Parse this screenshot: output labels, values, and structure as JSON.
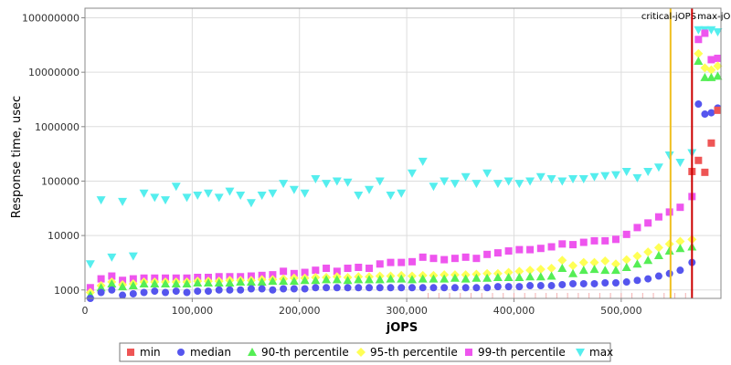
{
  "chart_data": {
    "type": "scatter",
    "title": "",
    "xlabel": "jOPS",
    "ylabel": "Response time, usec",
    "xlim": [
      0,
      593000
    ],
    "ylim": [
      700,
      150000000
    ],
    "y_scale": "log",
    "x_ticks": [
      0,
      100000,
      200000,
      300000,
      400000,
      500000
    ],
    "x_tick_labels": [
      "0",
      "100,000",
      "200,000",
      "300,000",
      "400,000",
      "500,000"
    ],
    "y_ticks": [
      1000,
      10000,
      100000,
      1000000,
      10000000,
      100000000
    ],
    "y_tick_labels": [
      "1000",
      "10000",
      "100000",
      "1000000",
      "10000000",
      "100000000"
    ],
    "grid": true,
    "legend_position": "bottom",
    "markers": [
      {
        "label": "critical-jOPS",
        "x": 546000,
        "color": "#f0c020"
      },
      {
        "label": "max-jOPS",
        "x": 566000,
        "color": "#cc0000"
      }
    ],
    "series": [
      {
        "name": "min",
        "color": "#ee5555",
        "shape": "square",
        "x": [
          566000,
          572000,
          578000,
          584000,
          590000
        ],
        "y": [
          150000,
          240000,
          145000,
          500000,
          2000000
        ]
      },
      {
        "name": "median",
        "color": "#5555ee",
        "shape": "circle",
        "x": [
          5000,
          15000,
          25000,
          35000,
          45000,
          55000,
          65000,
          75000,
          85000,
          95000,
          105000,
          115000,
          125000,
          135000,
          145000,
          155000,
          165000,
          175000,
          185000,
          195000,
          205000,
          215000,
          225000,
          235000,
          245000,
          255000,
          265000,
          275000,
          285000,
          295000,
          305000,
          315000,
          325000,
          335000,
          345000,
          355000,
          365000,
          375000,
          385000,
          395000,
          405000,
          415000,
          425000,
          435000,
          445000,
          455000,
          465000,
          475000,
          485000,
          495000,
          505000,
          515000,
          525000,
          535000,
          545000,
          555000,
          566000,
          572000,
          578000,
          584000,
          590000
        ],
        "y": [
          700,
          900,
          1000,
          800,
          850,
          900,
          950,
          900,
          950,
          900,
          950,
          950,
          1000,
          1000,
          1000,
          1050,
          1050,
          1000,
          1050,
          1050,
          1050,
          1100,
          1100,
          1100,
          1100,
          1100,
          1100,
          1100,
          1100,
          1100,
          1100,
          1100,
          1100,
          1100,
          1100,
          1100,
          1100,
          1100,
          1150,
          1150,
          1150,
          1200,
          1200,
          1200,
          1250,
          1300,
          1300,
          1300,
          1350,
          1350,
          1400,
          1500,
          1600,
          1800,
          2000,
          2300,
          3200,
          2600000,
          1700000,
          1800000,
          2200000
        ]
      },
      {
        "name": "90-th percentile",
        "color": "#55ee55",
        "shape": "triangle-up",
        "x": [
          5000,
          15000,
          25000,
          35000,
          45000,
          55000,
          65000,
          75000,
          85000,
          95000,
          105000,
          115000,
          125000,
          135000,
          145000,
          155000,
          165000,
          175000,
          185000,
          195000,
          205000,
          215000,
          225000,
          235000,
          245000,
          255000,
          265000,
          275000,
          285000,
          295000,
          305000,
          315000,
          325000,
          335000,
          345000,
          355000,
          365000,
          375000,
          385000,
          395000,
          405000,
          415000,
          425000,
          435000,
          445000,
          455000,
          465000,
          475000,
          485000,
          495000,
          505000,
          515000,
          525000,
          535000,
          545000,
          555000,
          566000,
          572000,
          578000,
          584000,
          590000
        ],
        "y": [
          800,
          1100,
          1300,
          1150,
          1200,
          1300,
          1300,
          1300,
          1300,
          1300,
          1350,
          1350,
          1350,
          1350,
          1400,
          1400,
          1400,
          1450,
          1450,
          1450,
          1500,
          1500,
          1550,
          1550,
          1500,
          1550,
          1550,
          1550,
          1600,
          1600,
          1550,
          1600,
          1600,
          1600,
          1650,
          1600,
          1650,
          1650,
          1700,
          1700,
          1700,
          1750,
          1750,
          1800,
          2500,
          2000,
          2300,
          2400,
          2300,
          2300,
          2600,
          3000,
          3500,
          4300,
          5200,
          5800,
          6200,
          16000000,
          8000000,
          8000000,
          8500000
        ]
      },
      {
        "name": "95-th percentile",
        "color": "#ffff55",
        "shape": "diamond",
        "x": [
          5000,
          15000,
          25000,
          35000,
          45000,
          55000,
          65000,
          75000,
          85000,
          95000,
          105000,
          115000,
          125000,
          135000,
          145000,
          155000,
          165000,
          175000,
          185000,
          195000,
          205000,
          215000,
          225000,
          235000,
          245000,
          255000,
          265000,
          275000,
          285000,
          295000,
          305000,
          315000,
          325000,
          335000,
          345000,
          355000,
          365000,
          375000,
          385000,
          395000,
          405000,
          415000,
          425000,
          435000,
          445000,
          455000,
          465000,
          475000,
          485000,
          495000,
          505000,
          515000,
          525000,
          535000,
          545000,
          555000,
          566000,
          572000,
          578000,
          584000,
          590000
        ],
        "y": [
          900,
          1200,
          1400,
          1250,
          1300,
          1400,
          1400,
          1400,
          1400,
          1400,
          1450,
          1450,
          1450,
          1500,
          1500,
          1500,
          1550,
          1550,
          1600,
          1650,
          1650,
          1700,
          1700,
          1750,
          1700,
          1750,
          1750,
          1800,
          1800,
          1850,
          1800,
          1850,
          1850,
          1900,
          1900,
          1900,
          1950,
          2000,
          2000,
          2100,
          2200,
          2300,
          2400,
          2500,
          3500,
          2800,
          3200,
          3200,
          3400,
          3000,
          3600,
          4200,
          5000,
          6000,
          7000,
          7800,
          8500,
          22000000,
          12000000,
          11000000,
          13000000
        ]
      },
      {
        "name": "99-th percentile",
        "color": "#ee55ee",
        "shape": "square",
        "x": [
          5000,
          15000,
          25000,
          35000,
          45000,
          55000,
          65000,
          75000,
          85000,
          95000,
          105000,
          115000,
          125000,
          135000,
          145000,
          155000,
          165000,
          175000,
          185000,
          195000,
          205000,
          215000,
          225000,
          235000,
          245000,
          255000,
          265000,
          275000,
          285000,
          295000,
          305000,
          315000,
          325000,
          335000,
          345000,
          355000,
          365000,
          375000,
          385000,
          395000,
          405000,
          415000,
          425000,
          435000,
          445000,
          455000,
          465000,
          475000,
          485000,
          495000,
          505000,
          515000,
          525000,
          535000,
          545000,
          555000,
          566000,
          572000,
          578000,
          584000,
          590000
        ],
        "y": [
          1100,
          1600,
          1800,
          1500,
          1600,
          1650,
          1650,
          1650,
          1650,
          1650,
          1700,
          1700,
          1750,
          1750,
          1750,
          1800,
          1850,
          1900,
          2200,
          2000,
          2100,
          2300,
          2500,
          2200,
          2500,
          2600,
          2500,
          3000,
          3200,
          3200,
          3300,
          4000,
          3800,
          3600,
          3800,
          4000,
          3800,
          4500,
          4800,
          5200,
          5500,
          5500,
          5800,
          6200,
          7000,
          6800,
          7500,
          8000,
          8000,
          8500,
          10500,
          14000,
          17000,
          22000,
          27000,
          33000,
          52000,
          40000000,
          52000000,
          17000000,
          18000000
        ]
      },
      {
        "name": "max",
        "color": "#55eeee",
        "shape": "triangle-down",
        "x": [
          5000,
          15000,
          25000,
          35000,
          45000,
          55000,
          65000,
          75000,
          85000,
          95000,
          105000,
          115000,
          125000,
          135000,
          145000,
          155000,
          165000,
          175000,
          185000,
          195000,
          205000,
          215000,
          225000,
          235000,
          245000,
          255000,
          265000,
          275000,
          285000,
          295000,
          305000,
          315000,
          325000,
          335000,
          345000,
          355000,
          365000,
          375000,
          385000,
          395000,
          405000,
          415000,
          425000,
          435000,
          445000,
          455000,
          465000,
          475000,
          485000,
          495000,
          505000,
          515000,
          525000,
          535000,
          545000,
          555000,
          566000,
          572000,
          578000,
          584000,
          590000
        ],
        "y": [
          3000,
          45000,
          4000,
          42000,
          4200,
          60000,
          50000,
          45000,
          80000,
          50000,
          55000,
          60000,
          50000,
          65000,
          55000,
          40000,
          55000,
          60000,
          90000,
          70000,
          60000,
          110000,
          90000,
          100000,
          95000,
          55000,
          70000,
          100000,
          55000,
          60000,
          140000,
          230000,
          80000,
          100000,
          90000,
          120000,
          90000,
          140000,
          90000,
          100000,
          90000,
          100000,
          120000,
          110000,
          100000,
          110000,
          110000,
          120000,
          125000,
          130000,
          150000,
          115000,
          150000,
          180000,
          300000,
          220000,
          330000,
          60000000,
          60000000,
          60000000,
          55000000
        ]
      }
    ],
    "legend": [
      "min",
      "median",
      "90-th percentile",
      "95-th percentile",
      "99-th percentile",
      "max"
    ]
  },
  "colors": {
    "background": "#ffffff",
    "plot_background": "#ffffff",
    "grid": "#dddddd",
    "axis": "#888888"
  }
}
